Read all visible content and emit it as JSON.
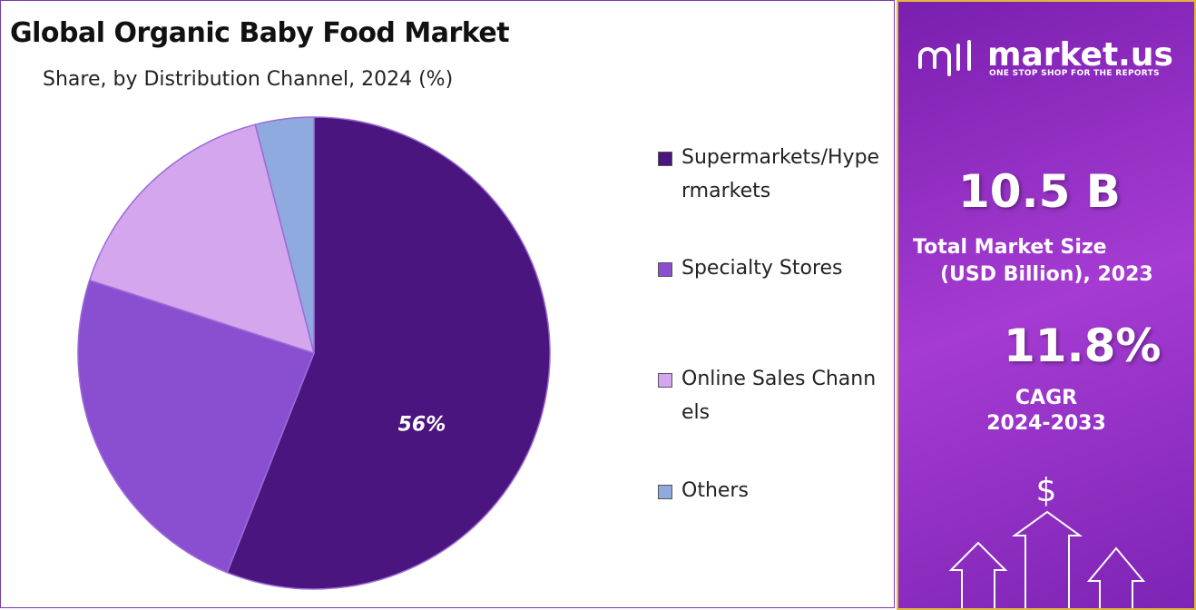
{
  "chart_data": {
    "type": "pie",
    "title": "Global Organic Baby Food Market",
    "subtitle": "Share, by Distribution Channel, 2024 (%)",
    "categories": [
      "Supermarkets/Hypermarkets",
      "Specialty Stores",
      "Online Sales Channels",
      "Others"
    ],
    "values": [
      56,
      24,
      16,
      4
    ],
    "value_labels": [
      "56%",
      null,
      null,
      null
    ],
    "colors": [
      "#4b1580",
      "#8a4fd0",
      "#d4a6ee",
      "#8eaade"
    ]
  },
  "sidebar": {
    "brand": "market.us",
    "tagline": "ONE STOP SHOP FOR THE REPORTS",
    "stats": [
      {
        "value": "10.5 B",
        "label_lines": [
          "Total Market Size",
          "(USD Billion), 2023"
        ]
      },
      {
        "value": "11.8%",
        "label_lines": [
          "CAGR",
          "2024-2033"
        ]
      }
    ],
    "icon": "$"
  }
}
